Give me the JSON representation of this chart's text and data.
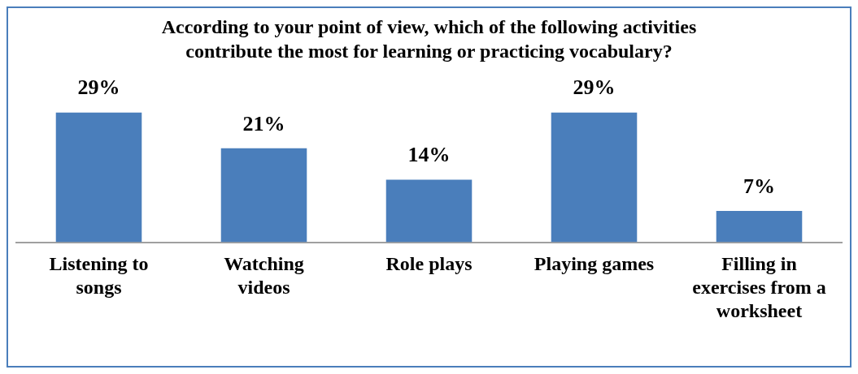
{
  "chart_data": {
    "type": "bar",
    "title": "According to your point of view, which of the following activities contribute the most for learning or practicing vocabulary?",
    "categories": [
      "Listening to songs",
      "Watching videos",
      "Role plays",
      "Playing games",
      "Filling in exercises from a worksheet"
    ],
    "values": [
      29,
      21,
      14,
      29,
      7
    ],
    "value_labels": [
      "29%",
      "21%",
      "14%",
      "29%",
      "7%"
    ],
    "color": "#4a7ebb",
    "legend": false,
    "grid": false
  }
}
